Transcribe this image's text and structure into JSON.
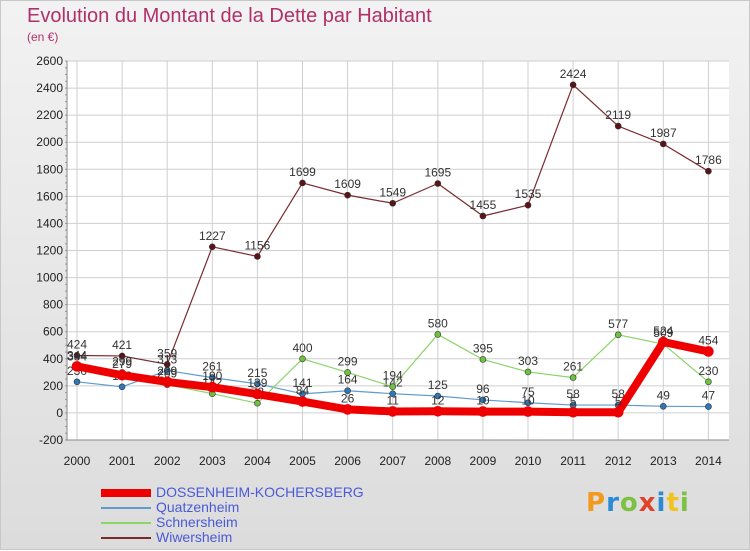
{
  "title": "Evolution du Montant de la Dette par Habitant",
  "subtitle": "(en €)",
  "brand": "Proxiti",
  "brand_colors": [
    "#f29a1e",
    "#2a8ad4",
    "#7cc242",
    "#e0432a",
    "#2a8ad4",
    "#f2c31e",
    "#7cc242"
  ],
  "chart_data": {
    "type": "line",
    "title": "Evolution du Montant de la Dette par Habitant",
    "subtitle": "(en €)",
    "x": [
      2000,
      2001,
      2002,
      2003,
      2004,
      2005,
      2006,
      2007,
      2008,
      2009,
      2010,
      2011,
      2012,
      2013,
      2014
    ],
    "ylim": [
      -200,
      2600
    ],
    "yticks": [
      -200,
      0,
      200,
      400,
      600,
      800,
      1000,
      1200,
      1400,
      1600,
      1800,
      2000,
      2200,
      2400,
      2600
    ],
    "grid": true,
    "legend_position": "bottom-left",
    "series": [
      {
        "name": "Wiwersheim",
        "color": "#7a2a2e",
        "marker": "#5a1418",
        "width": 1.2,
        "values": [
          424,
          421,
          359,
          1227,
          1156,
          1699,
          1609,
          1549,
          1695,
          1455,
          1535,
          2424,
          2119,
          1987,
          1786
        ]
      },
      {
        "name": "Quatzenheim",
        "color": "#5e9ccc",
        "marker": "#2e78b8",
        "width": 1.2,
        "values": [
          230,
          193,
          313,
          261,
          215,
          141,
          164,
          142,
          125,
          96,
          75,
          58,
          58,
          49,
          47
        ]
      },
      {
        "name": "Schnersheim",
        "color": "#8cd468",
        "marker": "#6cc43e",
        "width": 1.2,
        "values": [
          334,
          299,
          209,
          142,
          72,
          400,
          299,
          194,
          580,
          395,
          303,
          261,
          577,
          509,
          230
        ]
      },
      {
        "name": "DOSSENHEIM-KOCHERSBERG",
        "color": "#ee0000",
        "marker": "#ee0000",
        "width": 8,
        "values": [
          344,
          279,
          229,
          190,
          139,
          84,
          26,
          11,
          12,
          10,
          10,
          5,
          5,
          524,
          454
        ]
      }
    ]
  },
  "legend": [
    {
      "name": "DOSSENHEIM-KOCHERSBERG",
      "color": "#ee0000",
      "thick": 8
    },
    {
      "name": "Quatzenheim",
      "color": "#5e9ccc",
      "thick": 2
    },
    {
      "name": "Schnersheim",
      "color": "#8cd468",
      "thick": 2
    },
    {
      "name": "Wiwersheim",
      "color": "#7a2a2e",
      "thick": 2
    }
  ]
}
